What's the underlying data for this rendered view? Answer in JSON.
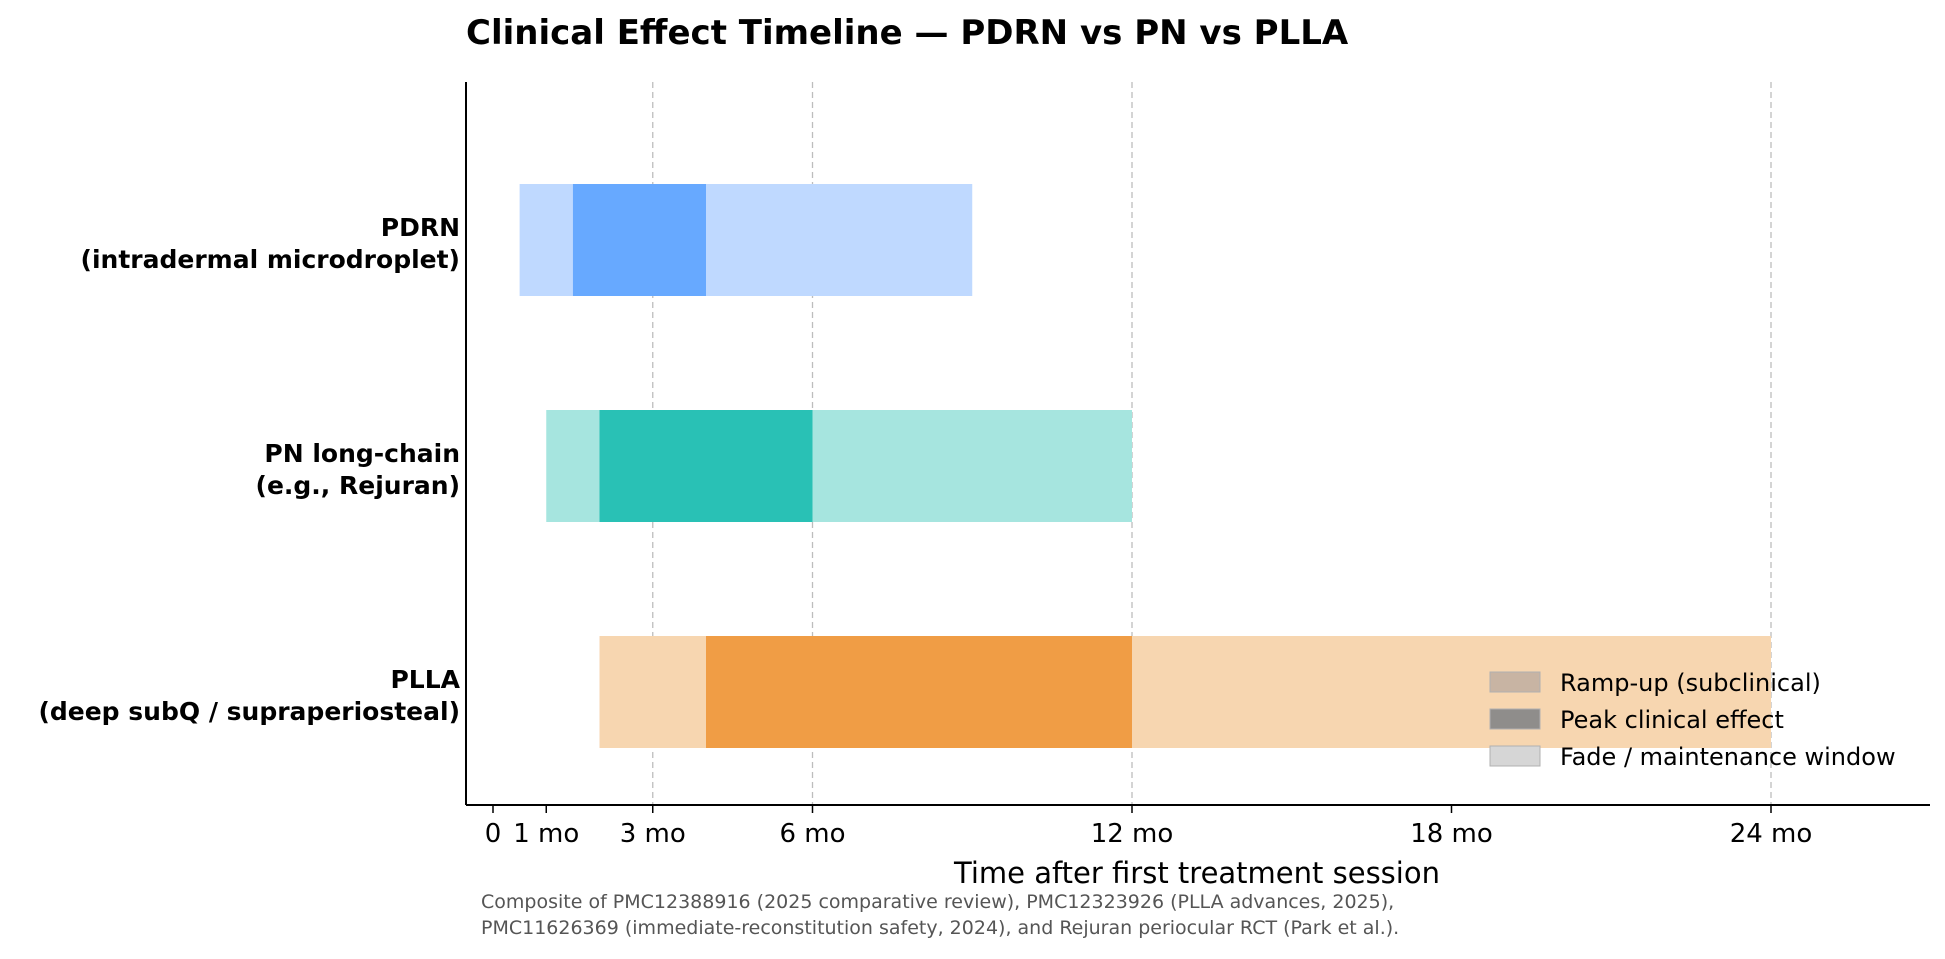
{
  "chart_data": {
    "type": "bar",
    "orientation": "horizontal-range",
    "title": "Clinical Effect Timeline — PDRN vs PN vs PLLA",
    "xlabel": "Time after first treatment session",
    "x_unit": "months",
    "xlim": [
      -0.5,
      27
    ],
    "xticks": [
      {
        "value": 0,
        "label": "0"
      },
      {
        "value": 1,
        "label": "1 mo"
      },
      {
        "value": 3,
        "label": "3 mo"
      },
      {
        "value": 6,
        "label": "6 mo"
      },
      {
        "value": 12,
        "label": "12 mo"
      },
      {
        "value": 18,
        "label": "18 mo"
      },
      {
        "value": 24,
        "label": "24 mo"
      }
    ],
    "grid_lines_at": [
      3,
      6,
      12,
      24
    ],
    "grid": true,
    "categories": [
      {
        "line1": "PDRN",
        "line2": "(intradermal microdroplet)"
      },
      {
        "line1": "PN long-chain",
        "line2": "(e.g., Rejuran)"
      },
      {
        "line1": "PLLA",
        "line2": "(deep subQ / supraperiosteal)"
      }
    ],
    "phases": [
      {
        "name": "ramp",
        "start": [
          0.5,
          1.0,
          2.0
        ],
        "end": [
          1.5,
          2.0,
          4.0
        ]
      },
      {
        "name": "peak",
        "start": [
          1.5,
          2.0,
          4.0
        ],
        "end": [
          4.0,
          6.0,
          12.0
        ]
      },
      {
        "name": "fade",
        "start": [
          4.0,
          6.0,
          12.0
        ],
        "end": [
          9.0,
          12.0,
          24.0
        ]
      }
    ],
    "colors": {
      "pale": [
        "#bfd9ff",
        "#a6e5df",
        "#f7d6b0"
      ],
      "strong": [
        "#67a9ff",
        "#29c1b5",
        "#f09d45"
      ]
    },
    "legend": {
      "position": "bottom-right",
      "entries": [
        {
          "label": "Ramp-up (subclinical)",
          "color": "#c8b4a3"
        },
        {
          "label": "Peak clinical effect",
          "color": "#8f8d8b"
        },
        {
          "label": "Fade / maintenance window",
          "color": "#d6d6d6"
        }
      ]
    },
    "footnote_lines": [
      "Composite of PMC12388916 (2025 comparative review), PMC12323926 (PLLA advances, 2025),",
      "PMC11626369 (immediate-reconstitution safety, 2024), and Rejuran periocular RCT (Park et al.)."
    ]
  }
}
